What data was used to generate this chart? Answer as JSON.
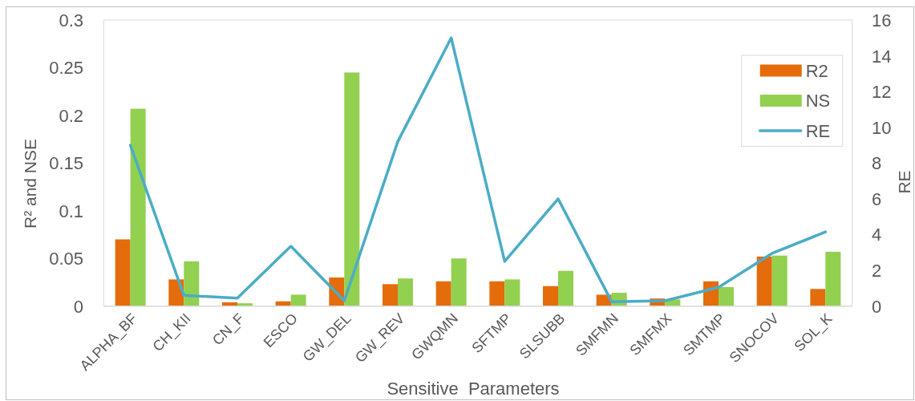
{
  "chart_data": {
    "type": "bar",
    "xlabel": "Sensitive  Parameters",
    "ylabel": "R² and NSE",
    "y2label": "RE",
    "categories": [
      "ALPHA_BF",
      "CH_KII",
      "CN_F",
      "ESCO",
      "GW_DEL",
      "GW_REV",
      "GWQMN",
      "SFTMP",
      "SLSUBB",
      "SMFMN",
      "SMFMX",
      "SMTMP",
      "SNOCOV",
      "SOL_K"
    ],
    "series": [
      {
        "name": "R2",
        "color": "#e46c0a",
        "values": [
          0.07,
          0.028,
          0.004,
          0.005,
          0.03,
          0.023,
          0.026,
          0.026,
          0.021,
          0.012,
          0.008,
          0.026,
          0.052,
          0.018
        ]
      },
      {
        "name": "NS",
        "color": "#92d050",
        "values": [
          0.207,
          0.047,
          0.003,
          0.012,
          0.245,
          0.029,
          0.05,
          0.028,
          0.037,
          0.014,
          0.007,
          0.02,
          0.053,
          0.057
        ]
      },
      {
        "name": "RE",
        "type": "line",
        "axis": "y2",
        "color": "#4bacc6",
        "values": [
          9.0,
          0.6,
          0.45,
          3.35,
          0.3,
          9.2,
          15.0,
          2.5,
          6.0,
          0.25,
          0.3,
          1.05,
          2.95,
          4.15
        ]
      }
    ],
    "ylim": [
      0,
      0.3
    ],
    "yticks": [
      0,
      0.05,
      0.1,
      0.15,
      0.2,
      0.25,
      0.3
    ],
    "y2lim": [
      0,
      16
    ],
    "y2ticks": [
      0,
      2,
      4,
      6,
      8,
      10,
      12,
      14,
      16
    ],
    "legend": "top right"
  }
}
